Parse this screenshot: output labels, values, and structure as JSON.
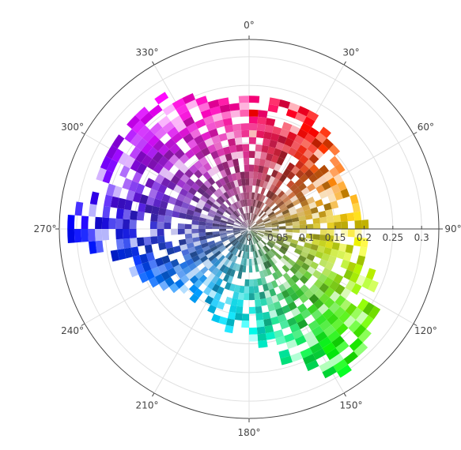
{
  "chart_data": {
    "type": "barpolar",
    "description_note": "",
    "angular_axis": {
      "direction": "clockwise",
      "rotation_zero": "top",
      "tick_labels": [
        "0°",
        "30°",
        "60°",
        "90°",
        "120°",
        "150°",
        "180°",
        "210°",
        "240°",
        "270°",
        "300°",
        "330°"
      ],
      "tick_values": [
        0,
        30,
        60,
        90,
        120,
        150,
        180,
        210,
        240,
        270,
        300,
        330
      ]
    },
    "radial_axis": {
      "range": [
        0,
        0.33
      ],
      "tick_values": [
        0,
        0.05,
        0.1,
        0.15,
        0.2,
        0.25,
        0.3
      ],
      "tick_labels": [
        "0",
        "0.05",
        "0.1",
        "0.15",
        "0.2",
        "0.25",
        "0.3"
      ],
      "angle": 90
    },
    "grid": true,
    "outer_radius_by_angle": {
      "angles": [
        0,
        15,
        30,
        45,
        60,
        75,
        90,
        105,
        120,
        135,
        150,
        165,
        180,
        195,
        210,
        225,
        240,
        255,
        270,
        285,
        300,
        315,
        330,
        345,
        360
      ],
      "radii": [
        0.22,
        0.23,
        0.22,
        0.2,
        0.19,
        0.19,
        0.2,
        0.21,
        0.25,
        0.28,
        0.3,
        0.23,
        0.18,
        0.17,
        0.15,
        0.15,
        0.19,
        0.22,
        0.32,
        0.28,
        0.27,
        0.28,
        0.27,
        0.23,
        0.22
      ]
    },
    "angular_bin_deg": 4.5,
    "radial_bin": 0.012,
    "fill_probability": 0.82,
    "colorscale": "hue-by-angle, saturation-by-radius, red-at-0-degrees-pointing-right-side-at-30"
  }
}
